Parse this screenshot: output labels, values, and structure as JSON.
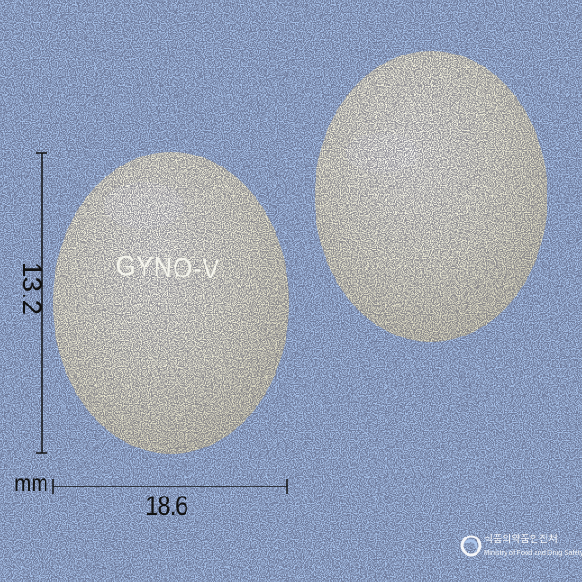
{
  "image": {
    "background_color": "#a9c4ec",
    "tablet_color": "#f1efdc",
    "imprint_text": "GYNO-V"
  },
  "dimensions": {
    "width_value": "18.6",
    "height_value": "13.2",
    "unit": "mm"
  },
  "watermark": {
    "korean": "식품의약품안전처",
    "english": "Ministry of Food and Drug Safety"
  }
}
